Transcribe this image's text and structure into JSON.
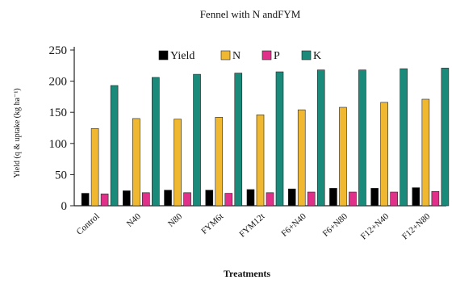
{
  "chart_data": {
    "type": "bar",
    "title": "Fennel with N andFYM",
    "xlabel": "Treatments",
    "ylabel": "Yield (q & uptake (kg ha⁻¹)",
    "ylim": [
      0,
      250
    ],
    "yticks": [
      0,
      50,
      100,
      150,
      200,
      250
    ],
    "grid": false,
    "legend_position": "top",
    "categories": [
      "Control",
      "N40",
      "N80",
      "FYM6t",
      "FYM12t",
      "F6+N40",
      "F6+N80",
      "F12+N40",
      "F12+N80"
    ],
    "series": [
      {
        "name": "Yield",
        "color": "#000000",
        "values": [
          20,
          24,
          25,
          25,
          26,
          27,
          28,
          28,
          29
        ]
      },
      {
        "name": "N",
        "color": "#f0b830",
        "values": [
          124,
          140,
          139,
          142,
          146,
          154,
          158,
          166,
          171
        ]
      },
      {
        "name": "P",
        "color": "#e0308a",
        "values": [
          19,
          21,
          21,
          20,
          21,
          22,
          22,
          22,
          23
        ]
      },
      {
        "name": "K",
        "color": "#1a8a7a",
        "values": [
          193,
          206,
          211,
          213,
          215,
          218,
          218,
          220,
          221
        ]
      }
    ]
  }
}
